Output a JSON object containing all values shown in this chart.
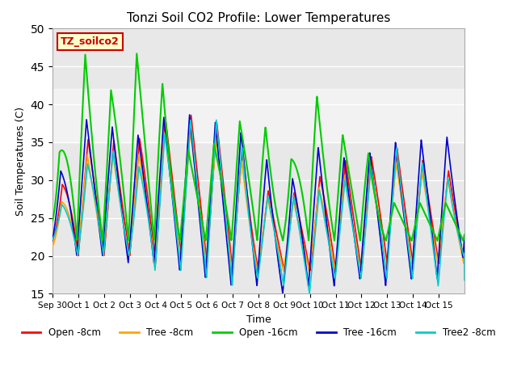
{
  "title": "Tonzi Soil CO2 Profile: Lower Temperatures",
  "xlabel": "Time",
  "ylabel": "Soil Temperatures (C)",
  "ylim": [
    15,
    50
  ],
  "yticks": [
    15,
    20,
    25,
    30,
    35,
    40,
    45,
    50
  ],
  "xlim": [
    0,
    16
  ],
  "xtick_labels": [
    "Sep 30",
    "Oct 1",
    "Oct 2",
    "Oct 3",
    "Oct 4",
    "Oct 5",
    "Oct 6",
    "Oct 7",
    "Oct 8",
    "Oct 9",
    "Oct 10",
    "Oct 11",
    "Oct 12",
    "Oct 13",
    "Oct 14",
    "Oct 15"
  ],
  "xtick_positions": [
    0,
    1,
    2,
    3,
    4,
    5,
    6,
    7,
    8,
    9,
    10,
    11,
    12,
    13,
    14,
    15
  ],
  "series": {
    "open_8cm": {
      "color": "#FF0000",
      "label": "Open -8cm",
      "lw": 1.2
    },
    "tree_8cm": {
      "color": "#FFA500",
      "label": "Tree -8cm",
      "lw": 1.2
    },
    "open_16cm": {
      "color": "#00CC00",
      "label": "Open -16cm",
      "lw": 1.5
    },
    "tree_16cm": {
      "color": "#0000CC",
      "label": "Tree -16cm",
      "lw": 1.2
    },
    "tree2_8cm": {
      "color": "#00CCCC",
      "label": "Tree2 -8cm",
      "lw": 1.2
    }
  },
  "label_box": {
    "text": "TZ_soilco2",
    "facecolor": "#FFFFCC",
    "edgecolor": "#CC0000",
    "textcolor": "#CC0000",
    "fontsize": 9,
    "fontweight": "bold"
  },
  "background_color": "#E8E8E8",
  "shaded_band": [
    35,
    42
  ],
  "grid_color": "#FFFFFF",
  "title_fontsize": 11
}
